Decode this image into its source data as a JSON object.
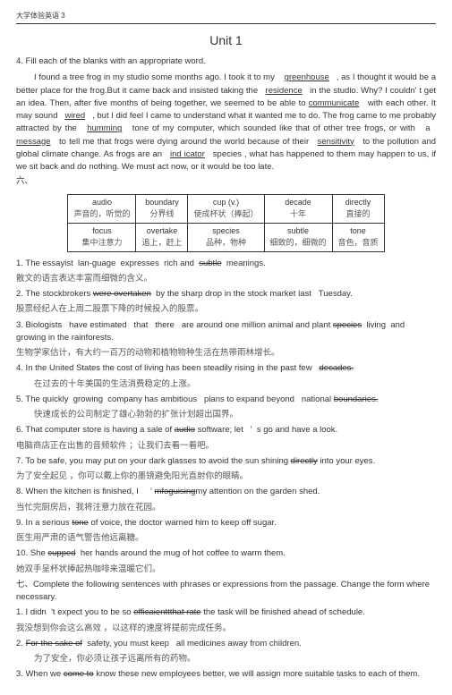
{
  "header": "大学体验英语  3",
  "unit_title": "Unit   1",
  "section4_title": "4. Fill each of the blanks with an appropriate word.",
  "para": {
    "t1": "I found a tree frog in my studio some months ago. I took it to my",
    "b1": "greenhouse",
    "t2": ", as I thought it would be a better place for the frog.But it came back and insisted taking the",
    "b2": "residence",
    "t3": "in the studio. Why? I couldn",
    "apos1": "'",
    "t4": "t get an idea. Then, after five months of being together, we seemed to be able to",
    "b3": "communicate",
    "t5": "with each other. It may sound",
    "b4": "wired",
    "t6": ", but I did feel I came to understand what it wanted me to do. The frog came to me probably attracted by the",
    "b5": "humming",
    "t7": "tone of my computer, which sounded like that of other tree frogs, or with",
    "t7a": "a",
    "b6": "message",
    "t8": "to tell me that frogs were dying around the world because of their",
    "b7": "sensitivity",
    "t9": "to the pollution and global climate change. As frogs are an",
    "b8": "ind icator",
    "t10": "species , what has happened to them may happen to us, if we sit back and do nothing. We must act now, or it would be too late."
  },
  "six": "六、",
  "table": {
    "r1c1a": "audio",
    "r1c1b": "声音的，听觉的",
    "r1c2a": "boundary",
    "r1c2b": "分界线",
    "r1c3a": "cup (v.)",
    "r1c3b": "使成杯状（捧起）",
    "r1c4a": "decade",
    "r1c4b": "十年",
    "r1c5a": "directly",
    "r1c5b": "直接的",
    "r2c1a": "focus",
    "r2c1b": "集中注意力",
    "r2c2a": "overtake",
    "r2c2b": "追上，赶上",
    "r2c3a": "species",
    "r2c3b": "品种，物种",
    "r2c4a": "subtle",
    "r2c4b": "细致的，细微的",
    "r2c5a": "tone",
    "r2c5b": "音色，音质"
  },
  "q1a": "1. The essayist",
  "q1b": "lan-guage",
  "q1c": "expresses",
  "q1d": "rich and",
  "q1e": "subtle",
  "q1f": "meanings.",
  "q1cn": "散文的语言表达丰富而细微的含义。",
  "q2a": "2. The stockbrokers",
  "q2b": "were overtaken",
  "q2c": "by the sharp drop in the stock market last",
  "q2d": "Tuesday.",
  "q2cn": "股票经纪人在上周二股票下降的时候投入的股票。",
  "q3a": "3.  Biologists",
  "q3b": "have   estimated",
  "q3c": "that",
  "q3d": "there",
  "q3e": "are  around  one million  animal  and plant",
  "q3f": "species",
  "q3g": "living",
  "q3h": "and growing in the rainforests.",
  "q3cn": "生物学家估计，有大约一百万的动物和植物物种生活在热带雨林增长。",
  "q4a": "4. In the United States the cost of living has been steadily rising in the past few",
  "q4b": "decades.",
  "q4cn": "在过去的十年美国的生活消费稳定的上涨。",
  "q5a": "5.  The quickly",
  "q5b": "growing",
  "q5c": "company has ambitious",
  "q5d": "plans to expand beyond",
  "q5e": "national",
  "q5f": "boundaries.",
  "q5cn": "快速成长的公司制定了雄心勃勃的扩张计划超出国界。",
  "q6a": "6. That computer store is having a sale of",
  "q6b": "audio",
  "q6c": "software; let",
  "q6apos": "'",
  "q6d": "s go and have a look.",
  "q6cn": "电脑商店正在出售的音频软件  ；让我们去看一看吧。",
  "q7a": "7. To be safe, you may put on your dark glasses to avoid the sun shining",
  "q7b": "directly",
  "q7c": "into your eyes.",
  "q7cn": "为了安全起见 ，你可以戴上你的墨镜避免阳光直射你的眼睛。",
  "q8a": "8. When the kitchen is finished, I",
  "q8apos": "'",
  "q8b": "mfoguising",
  "q8c": "my attention on the garden shed.",
  "q8cn": "当忙完厨房后，我将注意力放在花园。",
  "q9a": "9. In a serious",
  "q9b": "tone",
  "q9c": "of voice, the doctor warned him to keep off sugar.",
  "q9cn": "医生用严肃的语气警告他远离糖。",
  "q10a": "10. She",
  "q10b": "cupped",
  "q10c": "her hands around the mug of hot coffee to warm them.",
  "q10cn": "她双手呈杯状捧起热咖啡来温暖它们。",
  "seven": "七、Complete the following sentences with phrases or expressions from the passage. Change the form where necessary.",
  "s1a": "1. I didn",
  "s1apos": "'",
  "s1b": "t expect you to be so",
  "s1c": "efficaienttthat rate",
  "s1d": "the task will be finished ahead of schedule.",
  "s1cn": "我没想到你会这么高效  ，以这样的速度将提前完成任务。",
  "s2a": "2.",
  "s2b": "For the sake of",
  "s2c": "safety, you must keep",
  "s2d": "all medicines away from children.",
  "s2cn": "为了安全，你必须让孩子远离所有的药物。",
  "s3a": "3. When we",
  "s3b": "come to",
  "s3c": "know these new employees better, we will assign more suitable tasks to each of them."
}
